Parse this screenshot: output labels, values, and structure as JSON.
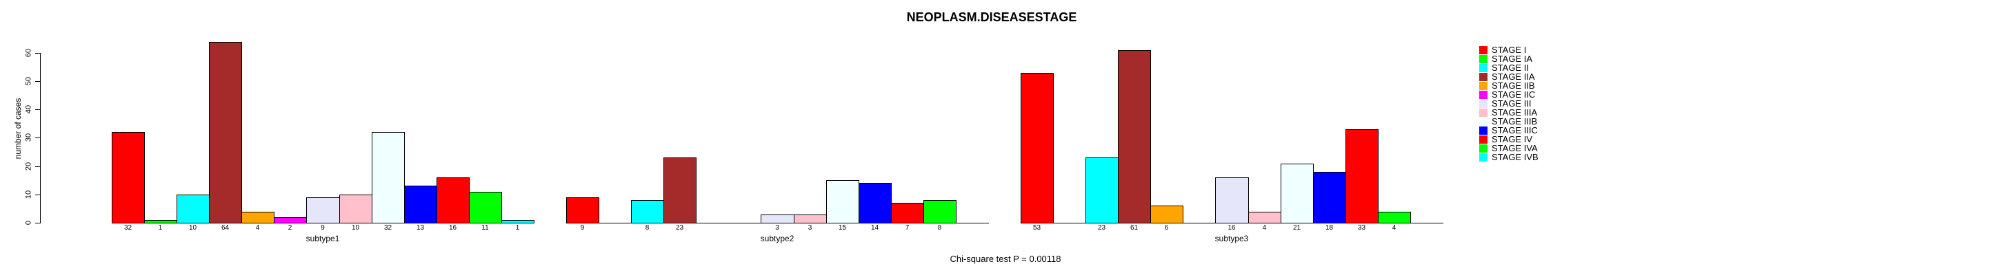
{
  "title": "NEOPLASM.DISEASESTAGE",
  "ylabel": "number of cases",
  "caption": "Chi-square test P = 0.00118",
  "chart_data": {
    "type": "bar",
    "title": "NEOPLASM.DISEASESTAGE",
    "xlabel": "",
    "ylabel": "number of cases",
    "ylim": [
      0,
      60
    ],
    "yticks": [
      0,
      10,
      20,
      30,
      40,
      50,
      60
    ],
    "grid": false,
    "legend_position": "right",
    "annotation": "Chi-square test P = 0.00118",
    "categories": [
      "STAGE I",
      "STAGE IA",
      "STAGE II",
      "STAGE IIA",
      "STAGE IIB",
      "STAGE IIC",
      "STAGE III",
      "STAGE IIIA",
      "STAGE IIIB",
      "STAGE IIIC",
      "STAGE IV",
      "STAGE IVA",
      "STAGE IVB"
    ],
    "colors": [
      "#FF0000",
      "#00FF00",
      "#00FFFF",
      "#A52A2A",
      "#FFA500",
      "#FF00FF",
      "#E6E6FA",
      "#FFC0CB",
      "#F0FFFF",
      "#0000FF",
      "#FF0000",
      "#00FF00",
      "#00FFFF"
    ],
    "groups": [
      {
        "label": "subtype1",
        "values": [
          32,
          1,
          10,
          64,
          4,
          2,
          9,
          10,
          32,
          13,
          16,
          11,
          1
        ]
      },
      {
        "label": "subtype2",
        "values": [
          9,
          0,
          8,
          23,
          0,
          0,
          3,
          3,
          15,
          14,
          7,
          8,
          0
        ]
      },
      {
        "label": "subtype3",
        "values": [
          53,
          0,
          23,
          61,
          6,
          0,
          16,
          4,
          21,
          18,
          33,
          4,
          0
        ]
      }
    ]
  }
}
